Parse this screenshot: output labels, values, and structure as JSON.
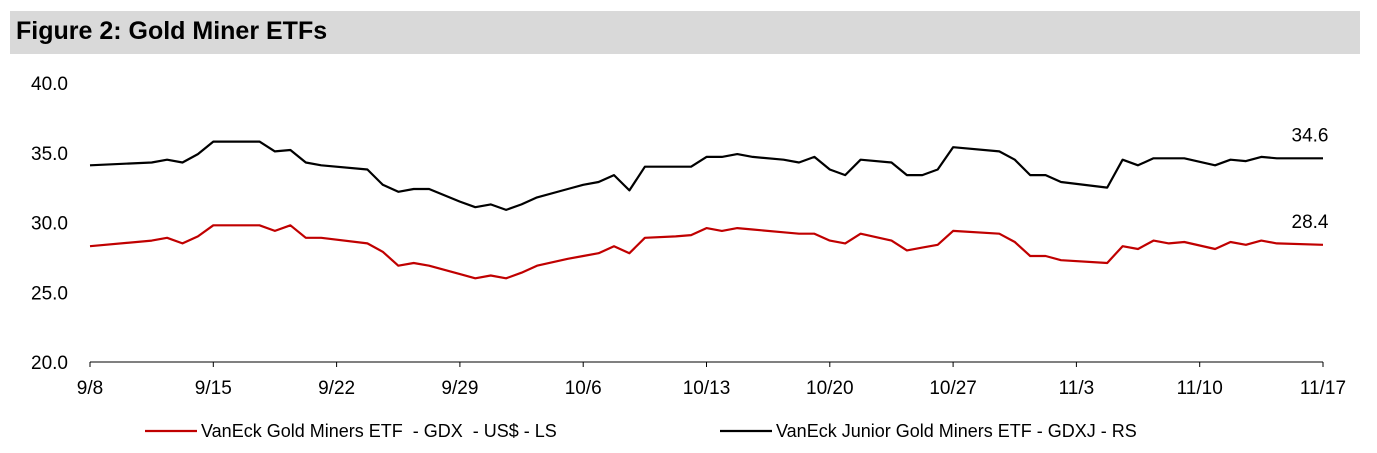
{
  "title": "Figure 2: Gold Miner ETFs",
  "chart_data": {
    "type": "line",
    "title": "Figure 2: Gold Miner ETFs",
    "xlabel": "",
    "ylabel": "",
    "ylim": [
      20,
      40
    ],
    "yticks": [
      20,
      25,
      30,
      35,
      40
    ],
    "ytick_labels": [
      "20.0",
      "25.0",
      "30.0",
      "35.0",
      "40.0"
    ],
    "x_ticks": [
      "9/8",
      "9/15",
      "9/22",
      "9/29",
      "10/6",
      "10/13",
      "10/20",
      "10/27",
      "11/3",
      "11/10",
      "11/17"
    ],
    "grid": false,
    "legend_position": "bottom",
    "series": [
      {
        "name": "VanEck Gold Miners ETF  - GDX  - US$ - LS",
        "color": "#c00000",
        "end_label": "28.4",
        "x": [
          0,
          4,
          5,
          6,
          7,
          8,
          10,
          11,
          12,
          13,
          14,
          15,
          18,
          19,
          20,
          21,
          22,
          24,
          25,
          26,
          27,
          28,
          29,
          31,
          32,
          33,
          34,
          35,
          36,
          38,
          39,
          40,
          41,
          42,
          43,
          45,
          46,
          47,
          48,
          49,
          50,
          52,
          53,
          54,
          55,
          56,
          59,
          60,
          61,
          62,
          63,
          66,
          67,
          68,
          69,
          70,
          71,
          73,
          74,
          75,
          76,
          77,
          80
        ],
        "values": [
          28.3,
          28.7,
          28.9,
          28.5,
          29.0,
          29.8,
          29.8,
          29.8,
          29.4,
          29.8,
          28.9,
          28.9,
          28.5,
          27.9,
          26.9,
          27.1,
          26.9,
          26.3,
          26.0,
          26.2,
          26.0,
          26.4,
          26.9,
          27.4,
          27.6,
          27.8,
          28.3,
          27.8,
          28.9,
          29.0,
          29.1,
          29.6,
          29.4,
          29.6,
          29.5,
          29.3,
          29.2,
          29.2,
          28.7,
          28.5,
          29.2,
          28.7,
          28.0,
          28.2,
          28.4,
          29.4,
          29.2,
          28.6,
          27.6,
          27.6,
          27.3,
          27.1,
          28.3,
          28.1,
          28.7,
          28.5,
          28.6,
          28.1,
          28.6,
          28.4,
          28.7,
          28.5,
          28.4
        ]
      },
      {
        "name": "VanEck Junior Gold Miners ETF - GDXJ - RS",
        "color": "#000000",
        "end_label": "34.6",
        "x": [
          0,
          4,
          5,
          6,
          7,
          8,
          10,
          11,
          12,
          13,
          14,
          15,
          18,
          19,
          20,
          21,
          22,
          24,
          25,
          26,
          27,
          28,
          29,
          31,
          32,
          33,
          34,
          35,
          36,
          38,
          39,
          40,
          41,
          42,
          43,
          45,
          46,
          47,
          48,
          49,
          50,
          52,
          53,
          54,
          55,
          56,
          59,
          60,
          61,
          62,
          63,
          66,
          67,
          68,
          69,
          70,
          71,
          73,
          74,
          75,
          76,
          77,
          80
        ],
        "values": [
          34.1,
          34.3,
          34.5,
          34.3,
          34.9,
          35.8,
          35.8,
          35.8,
          35.1,
          35.2,
          34.3,
          34.1,
          33.8,
          32.7,
          32.2,
          32.4,
          32.4,
          31.5,
          31.1,
          31.3,
          30.9,
          31.3,
          31.8,
          32.4,
          32.7,
          32.9,
          33.4,
          32.3,
          34.0,
          34.0,
          34.0,
          34.7,
          34.7,
          34.9,
          34.7,
          34.5,
          34.3,
          34.7,
          33.8,
          33.4,
          34.5,
          34.3,
          33.4,
          33.4,
          33.8,
          35.4,
          35.1,
          34.5,
          33.4,
          33.4,
          32.9,
          32.5,
          34.5,
          34.1,
          34.6,
          34.6,
          34.6,
          34.1,
          34.5,
          34.4,
          34.7,
          34.6,
          34.6
        ]
      }
    ]
  }
}
